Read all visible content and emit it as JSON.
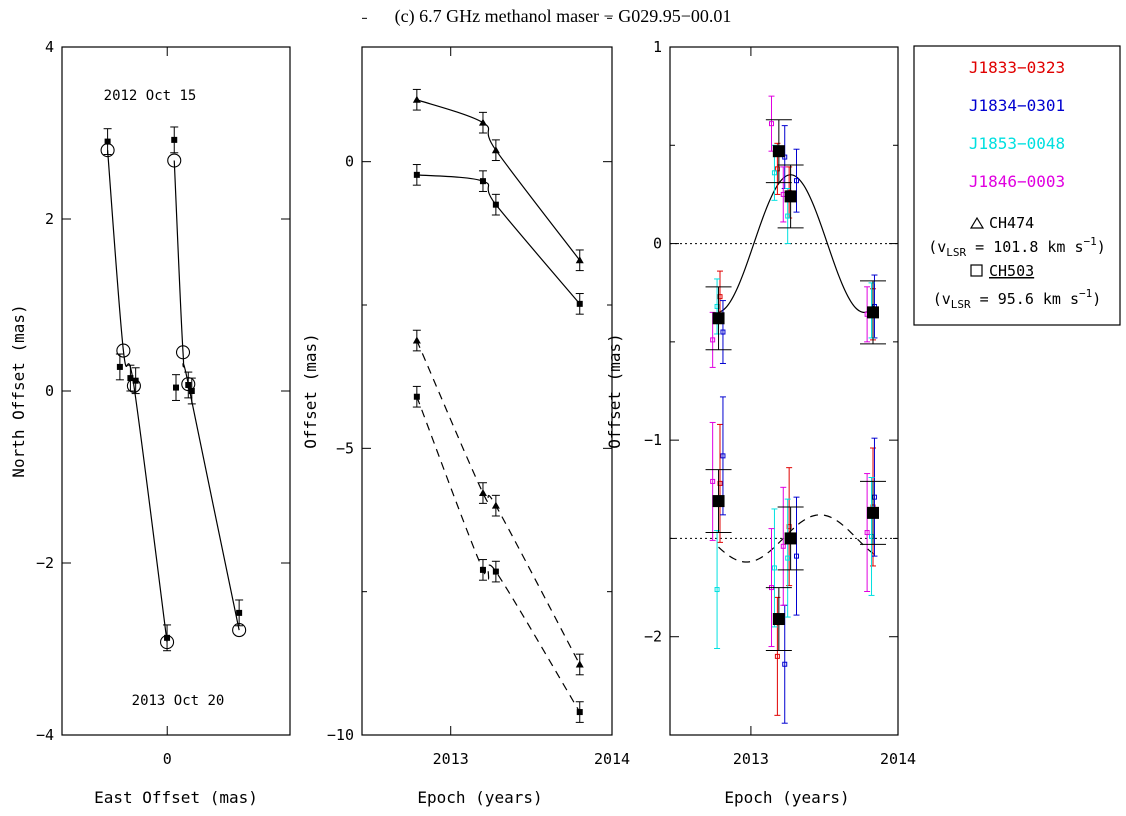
{
  "title": "(c) 6.7 GHz methanol maser − G029.95−00.01",
  "chart_data": [
    {
      "type": "scatter",
      "xlabel": "East Offset (mas)",
      "ylabel": "North Offset (mas)",
      "xlim": [
        -0.6,
        0.7
      ],
      "ylim": [
        -4,
        4
      ],
      "xticks": [
        "0"
      ],
      "yticks": [
        "4",
        "2",
        "0",
        "−2",
        "−4"
      ],
      "annotations": [
        "2012 Oct 15",
        "2013 Oct 20"
      ],
      "series": [
        {
          "x": [
            -0.34,
            -0.27,
            -0.21,
            -0.18,
            -0.001
          ],
          "y": [
            2.9,
            0.28,
            0.15,
            0.12,
            -2.87
          ],
          "yerr": [
            0.15,
            0.15,
            0.15,
            0.15,
            0.15
          ],
          "model_x": [
            -0.34,
            -0.25,
            -0.19,
            -0.001
          ],
          "model_y": [
            2.8,
            0.47,
            0.06,
            -2.92
          ]
        },
        {
          "x": [
            0.04,
            0.05,
            0.12,
            0.14,
            0.41
          ],
          "y": [
            2.92,
            0.04,
            0.07,
            0.0,
            -2.58
          ],
          "yerr": [
            0.15,
            0.15,
            0.15,
            0.15,
            0.15
          ],
          "model_x": [
            0.04,
            0.09,
            0.12,
            0.41
          ],
          "model_y": [
            2.68,
            0.45,
            0.08,
            -2.78
          ]
        }
      ]
    },
    {
      "type": "line",
      "xlabel": "Epoch (years)",
      "ylabel": "Offset (mas)",
      "xlim": [
        2012.45,
        2014.0
      ],
      "ylim": [
        -10,
        2
      ],
      "xticks": [
        "2013",
        "2014"
      ],
      "yticks": [
        "0",
        "−5",
        "−10"
      ],
      "series": [
        {
          "marker": "triangle",
          "x": [
            2012.79,
            2013.2,
            2013.28,
            2013.8
          ],
          "y": [
            1.08,
            0.68,
            0.2,
            -1.72
          ]
        },
        {
          "marker": "square",
          "x": [
            2012.79,
            2013.2,
            2013.28,
            2013.8
          ],
          "y": [
            -0.23,
            -0.34,
            -0.75,
            -2.48
          ]
        },
        {
          "marker": "triangle",
          "x": [
            2012.79,
            2013.2,
            2013.28,
            2013.8
          ],
          "y": [
            -3.12,
            -5.78,
            -6.0,
            -8.77
          ]
        },
        {
          "marker": "square",
          "x": [
            2012.79,
            2013.2,
            2013.28,
            2013.8
          ],
          "y": [
            -4.1,
            -7.12,
            -7.15,
            -9.6
          ]
        }
      ]
    },
    {
      "type": "scatter",
      "xlabel": "Epoch (years)",
      "ylabel": "Offset (mas)",
      "xlim": [
        2012.45,
        2014.0
      ],
      "ylim": [
        -2.5,
        1
      ],
      "xticks": [
        "2013",
        "2014"
      ],
      "yticks": [
        "1",
        "0",
        "−1",
        "−2"
      ],
      "series": [
        {
          "name": "J1833−0323",
          "color": "#e00000",
          "x": [
            2012.79,
            2013.18,
            2013.26,
            2013.83
          ],
          "y": [
            -0.27,
            0.38,
            0.26,
            -0.36
          ]
        },
        {
          "name": "J1834−0301",
          "color": "#0000d0",
          "x": [
            2012.81,
            2013.23,
            2013.31,
            2013.84
          ],
          "y": [
            -0.45,
            0.44,
            0.32,
            -0.32
          ]
        },
        {
          "name": "J1853−0048",
          "color": "#00e0e0",
          "x": [
            2012.77,
            2013.16,
            2013.25,
            2013.82
          ],
          "y": [
            -0.32,
            0.36,
            0.14,
            -0.34
          ]
        },
        {
          "name": "J1846−0003",
          "color": "#e000e0",
          "x": [
            2012.74,
            2013.14,
            2013.22,
            2013.79
          ],
          "y": [
            -0.49,
            0.61,
            0.25,
            -0.36
          ]
        },
        {
          "name": "J1833−0323",
          "color": "#e00000",
          "x": [
            2012.79,
            2013.18,
            2013.26,
            2013.83
          ],
          "y": [
            -1.22,
            -2.1,
            -1.44,
            -1.34
          ]
        },
        {
          "name": "J1834−0301",
          "color": "#0000d0",
          "x": [
            2012.81,
            2013.23,
            2013.31,
            2013.84
          ],
          "y": [
            -1.08,
            -2.14,
            -1.59,
            -1.29
          ]
        },
        {
          "name": "J1853−0048",
          "color": "#00e0e0",
          "x": [
            2012.77,
            2013.16,
            2013.25,
            2013.82
          ],
          "y": [
            -1.76,
            -1.65,
            -1.6,
            -1.49
          ]
        },
        {
          "name": "J1846−0003",
          "color": "#e000e0",
          "x": [
            2012.74,
            2013.14,
            2013.22,
            2013.79
          ],
          "y": [
            -1.21,
            -1.75,
            -1.54,
            -1.47
          ]
        },
        {
          "marker": "square-filled",
          "x": [
            2012.78,
            2013.19,
            2013.27,
            2013.83
          ],
          "y": [
            -0.38,
            0.47,
            0.24,
            -0.35
          ]
        },
        {
          "marker": "square-filled",
          "x": [
            2012.78,
            2013.19,
            2013.27,
            2013.83
          ],
          "y": [
            -1.31,
            -1.91,
            -1.5,
            -1.37
          ]
        }
      ],
      "reference_lines": [
        0,
        -1.5
      ]
    }
  ],
  "legend": {
    "sources": [
      {
        "label": "J1833−0323",
        "color": "#e00000"
      },
      {
        "label": "J1834−0301",
        "color": "#0000d0"
      },
      {
        "label": "J1853−0048",
        "color": "#00e0e0"
      },
      {
        "label": "J1846−0003",
        "color": "#e000e0"
      }
    ],
    "ch474_name": "CH474",
    "ch474_vel_pre": "(v",
    "ch474_vel_sub": "LSR",
    "ch474_vel_mid": " = 101.8 km s",
    "ch474_vel_sup": "−1",
    "ch474_vel_post": ")",
    "ch503_name": "CH503",
    "ch503_vel_pre": "(v",
    "ch503_vel_sub": "LSR",
    "ch503_vel_mid": " = 95.6 km s",
    "ch503_vel_sup": "−1",
    "ch503_vel_post": ")"
  }
}
